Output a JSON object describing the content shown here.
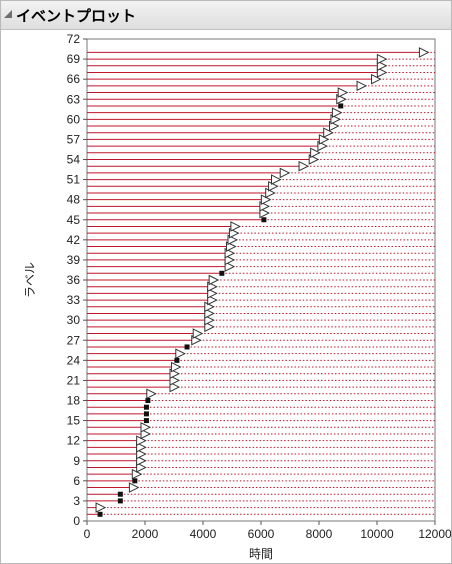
{
  "window": {
    "title": "イベントプロット"
  },
  "chart_data": {
    "type": "event-plot",
    "xlabel": "時間",
    "ylabel": "ラベル",
    "xlim": [
      0,
      12000
    ],
    "ylim": [
      0,
      72
    ],
    "xticks": [
      0,
      2000,
      4000,
      6000,
      8000,
      10000,
      12000
    ],
    "yticks": [
      0,
      3,
      6,
      9,
      12,
      15,
      18,
      21,
      24,
      27,
      30,
      33,
      36,
      39,
      42,
      45,
      48,
      51,
      54,
      57,
      60,
      63,
      66,
      69,
      72
    ],
    "grid": false,
    "legend": "none",
    "colors": {
      "line": "#c0152a",
      "failure_marker": "#111111",
      "censor_marker": "#333333"
    },
    "event_labels": [
      "1",
      "2",
      "3",
      "4",
      "5",
      "6",
      "7",
      "8",
      "9",
      "10",
      "11",
      "12",
      "13",
      "14",
      "15",
      "16",
      "17",
      "18",
      "19",
      "20",
      "21",
      "22",
      "23",
      "24",
      "25",
      "26",
      "27",
      "28",
      "29",
      "30",
      "31",
      "32",
      "33",
      "34",
      "35",
      "36",
      "37",
      "38",
      "39",
      "40",
      "41",
      "42",
      "43",
      "44",
      "45",
      "46",
      "47",
      "48",
      "49",
      "50",
      "51",
      "52",
      "53",
      "54",
      "55",
      "56",
      "57",
      "58",
      "59",
      "60",
      "61",
      "62",
      "63",
      "64",
      "65",
      "66",
      "67",
      "68",
      "69",
      "70"
    ],
    "events": [
      {
        "label": 1,
        "time": 450,
        "event": "failure"
      },
      {
        "label": 2,
        "time": 450,
        "event": "censored"
      },
      {
        "label": 3,
        "time": 1150,
        "event": "failure"
      },
      {
        "label": 4,
        "time": 1150,
        "event": "failure"
      },
      {
        "label": 5,
        "time": 1600,
        "event": "censored"
      },
      {
        "label": 6,
        "time": 1650,
        "event": "failure"
      },
      {
        "label": 7,
        "time": 1700,
        "event": "censored"
      },
      {
        "label": 8,
        "time": 1850,
        "event": "censored"
      },
      {
        "label": 9,
        "time": 1850,
        "event": "censored"
      },
      {
        "label": 10,
        "time": 1850,
        "event": "censored"
      },
      {
        "label": 11,
        "time": 1850,
        "event": "censored"
      },
      {
        "label": 12,
        "time": 1850,
        "event": "censored"
      },
      {
        "label": 13,
        "time": 2000,
        "event": "censored"
      },
      {
        "label": 14,
        "time": 2000,
        "event": "censored"
      },
      {
        "label": 15,
        "time": 2050,
        "event": "failure"
      },
      {
        "label": 16,
        "time": 2050,
        "event": "failure"
      },
      {
        "label": 17,
        "time": 2050,
        "event": "failure"
      },
      {
        "label": 18,
        "time": 2100,
        "event": "failure"
      },
      {
        "label": 19,
        "time": 2200,
        "event": "censored"
      },
      {
        "label": 20,
        "time": 3000,
        "event": "censored"
      },
      {
        "label": 21,
        "time": 3000,
        "event": "censored"
      },
      {
        "label": 22,
        "time": 3000,
        "event": "censored"
      },
      {
        "label": 23,
        "time": 3050,
        "event": "censored"
      },
      {
        "label": 24,
        "time": 3100,
        "event": "failure"
      },
      {
        "label": 25,
        "time": 3200,
        "event": "censored"
      },
      {
        "label": 26,
        "time": 3450,
        "event": "failure"
      },
      {
        "label": 27,
        "time": 3750,
        "event": "censored"
      },
      {
        "label": 28,
        "time": 3800,
        "event": "censored"
      },
      {
        "label": 29,
        "time": 4200,
        "event": "censored"
      },
      {
        "label": 30,
        "time": 4200,
        "event": "censored"
      },
      {
        "label": 31,
        "time": 4200,
        "event": "censored"
      },
      {
        "label": 32,
        "time": 4200,
        "event": "censored"
      },
      {
        "label": 33,
        "time": 4300,
        "event": "censored"
      },
      {
        "label": 34,
        "time": 4300,
        "event": "censored"
      },
      {
        "label": 35,
        "time": 4300,
        "event": "censored"
      },
      {
        "label": 36,
        "time": 4350,
        "event": "censored"
      },
      {
        "label": 37,
        "time": 4650,
        "event": "failure"
      },
      {
        "label": 38,
        "time": 4900,
        "event": "censored"
      },
      {
        "label": 39,
        "time": 4900,
        "event": "censored"
      },
      {
        "label": 40,
        "time": 4900,
        "event": "censored"
      },
      {
        "label": 41,
        "time": 4950,
        "event": "censored"
      },
      {
        "label": 42,
        "time": 5000,
        "event": "censored"
      },
      {
        "label": 43,
        "time": 5050,
        "event": "censored"
      },
      {
        "label": 44,
        "time": 5100,
        "event": "censored"
      },
      {
        "label": 45,
        "time": 6100,
        "event": "failure"
      },
      {
        "label": 46,
        "time": 6100,
        "event": "censored"
      },
      {
        "label": 47,
        "time": 6100,
        "event": "censored"
      },
      {
        "label": 48,
        "time": 6150,
        "event": "censored"
      },
      {
        "label": 49,
        "time": 6300,
        "event": "censored"
      },
      {
        "label": 50,
        "time": 6400,
        "event": "censored"
      },
      {
        "label": 51,
        "time": 6500,
        "event": "censored"
      },
      {
        "label": 52,
        "time": 6800,
        "event": "censored"
      },
      {
        "label": 53,
        "time": 7450,
        "event": "censored"
      },
      {
        "label": 54,
        "time": 7800,
        "event": "censored"
      },
      {
        "label": 55,
        "time": 7850,
        "event": "censored"
      },
      {
        "label": 56,
        "time": 8100,
        "event": "censored"
      },
      {
        "label": 57,
        "time": 8150,
        "event": "censored"
      },
      {
        "label": 58,
        "time": 8300,
        "event": "censored"
      },
      {
        "label": 59,
        "time": 8500,
        "event": "censored"
      },
      {
        "label": 60,
        "time": 8550,
        "event": "censored"
      },
      {
        "label": 61,
        "time": 8600,
        "event": "censored"
      },
      {
        "label": 62,
        "time": 8750,
        "event": "failure"
      },
      {
        "label": 63,
        "time": 8750,
        "event": "censored"
      },
      {
        "label": 64,
        "time": 8800,
        "event": "censored"
      },
      {
        "label": 65,
        "time": 9450,
        "event": "censored"
      },
      {
        "label": 66,
        "time": 9950,
        "event": "censored"
      },
      {
        "label": 67,
        "time": 10150,
        "event": "censored"
      },
      {
        "label": 68,
        "time": 10150,
        "event": "censored"
      },
      {
        "label": 69,
        "time": 10150,
        "event": "censored"
      },
      {
        "label": 70,
        "time": 11600,
        "event": "censored"
      }
    ]
  }
}
